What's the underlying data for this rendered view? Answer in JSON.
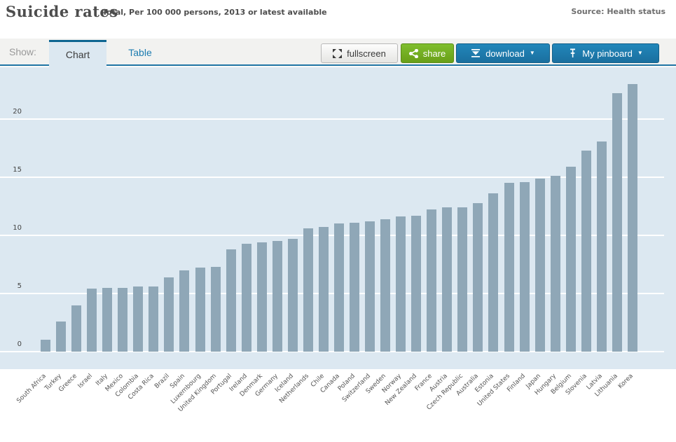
{
  "header": {
    "title": "Suicide rates",
    "subtitle": "Total, Per 100 000 persons, 2013 or latest available",
    "source": "Source: Health status"
  },
  "toolbar": {
    "show_label": "Show:",
    "tabs": [
      {
        "label": "Chart",
        "active": true
      },
      {
        "label": "Table",
        "active": false
      }
    ],
    "buttons": {
      "fullscreen": "fullscreen",
      "share": "share",
      "download": "download",
      "pinboard": "My pinboard"
    },
    "caret": "▼"
  },
  "colors": {
    "accent_blue": "#1c7cb0",
    "accent_green": "#76b21f",
    "tab_underline": "#2276a6",
    "bar": "#8fa7b7",
    "plot_background": "#dce8f1",
    "gridline": "#ffffff"
  },
  "chart_data": {
    "type": "bar",
    "title": "Suicide rates",
    "subtitle": "Total, Per 100 000 persons, 2013 or latest available",
    "xlabel": "",
    "ylabel": "Per 100 000 persons",
    "ylim": [
      0,
      24.5
    ],
    "yticks": [
      0,
      5,
      10,
      15,
      20
    ],
    "grid": true,
    "legend": "none",
    "categories": [
      "South Africa",
      "Turkey",
      "Greece",
      "Israel",
      "Italy",
      "Mexico",
      "Colombia",
      "Costa Rica",
      "Brazil",
      "Spain",
      "Luxembourg",
      "United Kingdom",
      "Portugal",
      "Ireland",
      "Denmark",
      "Germany",
      "Iceland",
      "Netherlands",
      "Chile",
      "Canada",
      "Poland",
      "Switzerland",
      "Sweden",
      "Norway",
      "New Zealand",
      "France",
      "Austria",
      "Czech Republic",
      "Australia",
      "Estonia",
      "United States",
      "Finland",
      "Japan",
      "Hungary",
      "Belgium",
      "Slovenia",
      "Latvia",
      "Lithuania",
      "Korea"
    ],
    "values": [
      1.0,
      2.6,
      4.0,
      5.4,
      5.5,
      5.5,
      5.6,
      5.6,
      6.4,
      7.0,
      7.2,
      7.3,
      8.8,
      9.3,
      9.4,
      9.5,
      9.7,
      10.6,
      10.7,
      11.0,
      11.1,
      11.2,
      11.4,
      11.6,
      11.7,
      12.2,
      12.4,
      12.4,
      12.8,
      13.6,
      14.5,
      14.6,
      14.9,
      15.1,
      15.9,
      17.3,
      18.1,
      22.2,
      23.0
    ]
  }
}
